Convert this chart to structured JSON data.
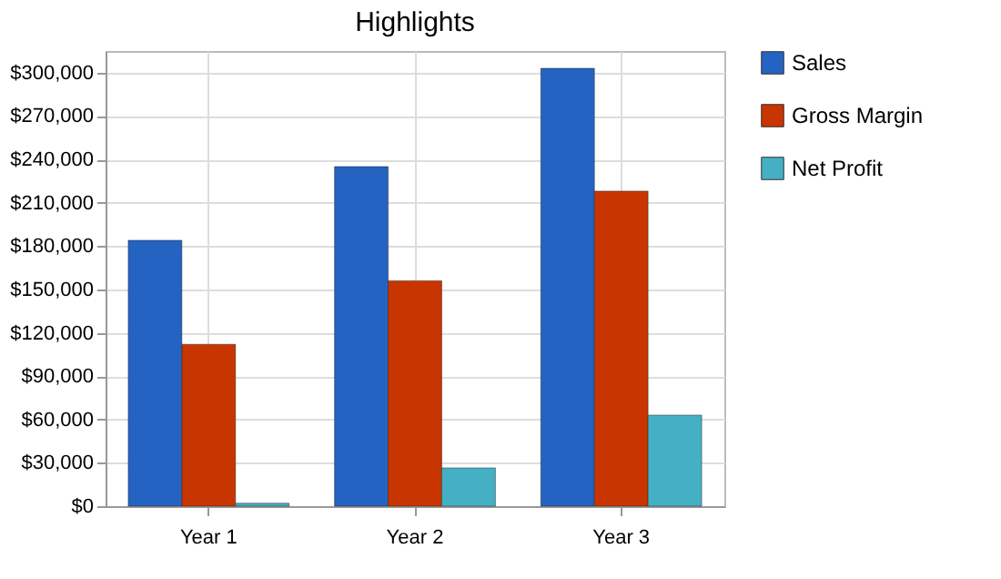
{
  "chart_data": {
    "type": "bar",
    "title": "Highlights",
    "categories": [
      "Year 1",
      "Year 2",
      "Year 3"
    ],
    "series": [
      {
        "name": "Sales",
        "color": "#2563c2",
        "values": [
          184000,
          235000,
          303000
        ]
      },
      {
        "name": "Gross Margin",
        "color": "#c83500",
        "values": [
          112000,
          156000,
          218000
        ]
      },
      {
        "name": "Net Profit",
        "color": "#45b0c4",
        "values": [
          2000,
          26500,
          63000
        ]
      }
    ],
    "ylim": [
      0,
      315000
    ],
    "yticks": [
      {
        "value": 0,
        "label": "$0"
      },
      {
        "value": 30000,
        "label": "$30,000"
      },
      {
        "value": 60000,
        "label": "$60,000"
      },
      {
        "value": 90000,
        "label": "$90,000"
      },
      {
        "value": 120000,
        "label": "$120,000"
      },
      {
        "value": 150000,
        "label": "$150,000"
      },
      {
        "value": 180000,
        "label": "$180,000"
      },
      {
        "value": 210000,
        "label": "$210,000"
      },
      {
        "value": 240000,
        "label": "$240,000"
      },
      {
        "value": 270000,
        "label": "$270,000"
      },
      {
        "value": 300000,
        "label": "$300,000"
      }
    ],
    "grid": true,
    "legend": "right"
  }
}
